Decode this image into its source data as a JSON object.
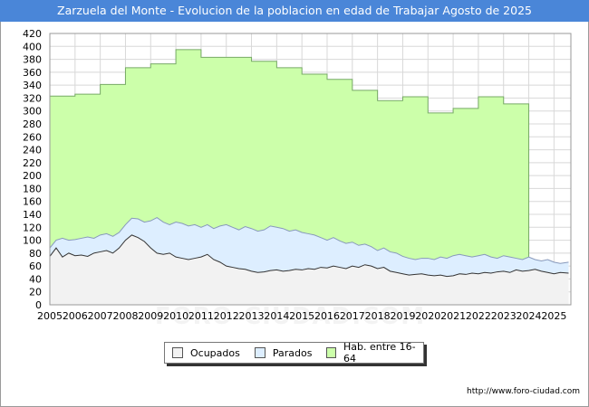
{
  "chart_data": {
    "type": "area",
    "title": "Zarzuela del Monte - Evolucion de la poblacion en edad de Trabajar Agosto de 2025",
    "xlabel": "",
    "ylabel": "",
    "ylim": [
      0,
      420
    ],
    "xlim": [
      2005,
      2025.67
    ],
    "y_ticks": [
      0,
      20,
      40,
      60,
      80,
      100,
      120,
      140,
      160,
      180,
      200,
      220,
      240,
      260,
      280,
      300,
      320,
      340,
      360,
      380,
      400,
      420
    ],
    "x_ticks": [
      "2005",
      "2006",
      "2007",
      "2008",
      "2009",
      "2010",
      "2011",
      "2012",
      "2013",
      "2014",
      "2015",
      "2016",
      "2017",
      "2018",
      "2019",
      "2020",
      "2021",
      "2022",
      "2023",
      "2024",
      "2025"
    ],
    "grid": true,
    "legend_position": "bottom",
    "colors": {
      "hab": "#ccffaa",
      "hab_line": "#77aa66",
      "parados": "#ddeeff",
      "parados_line": "#8899bb",
      "ocupados": "#f2f2f2",
      "ocupados_line": "#333333",
      "title_bar": "#4a86d8"
    },
    "series": [
      {
        "name": "Hab. entre 16-64",
        "x": [
          2005,
          2006,
          2007,
          2008,
          2009,
          2010,
          2011,
          2012,
          2013,
          2014,
          2015,
          2016,
          2017,
          2018,
          2019,
          2020,
          2021,
          2022,
          2023,
          2024
        ],
        "values": [
          323,
          326,
          341,
          367,
          373,
          395,
          383,
          383,
          377,
          367,
          357,
          349,
          332,
          316,
          322,
          297,
          304,
          322,
          311,
          0
        ]
      },
      {
        "name": "Parados",
        "x": [
          2005.0,
          2005.25,
          2005.5,
          2005.75,
          2006.0,
          2006.25,
          2006.5,
          2006.75,
          2007.0,
          2007.25,
          2007.5,
          2007.75,
          2008.0,
          2008.25,
          2008.5,
          2008.75,
          2009.0,
          2009.25,
          2009.5,
          2009.75,
          2010.0,
          2010.25,
          2010.5,
          2010.75,
          2011.0,
          2011.25,
          2011.5,
          2011.75,
          2012.0,
          2012.25,
          2012.5,
          2012.75,
          2013.0,
          2013.25,
          2013.5,
          2013.75,
          2014.0,
          2014.25,
          2014.5,
          2014.75,
          2015.0,
          2015.25,
          2015.5,
          2015.75,
          2016.0,
          2016.25,
          2016.5,
          2016.75,
          2017.0,
          2017.25,
          2017.5,
          2017.75,
          2018.0,
          2018.25,
          2018.5,
          2018.75,
          2019.0,
          2019.25,
          2019.5,
          2019.75,
          2020.0,
          2020.25,
          2020.5,
          2020.75,
          2021.0,
          2021.25,
          2021.5,
          2021.75,
          2022.0,
          2022.25,
          2022.5,
          2022.75,
          2023.0,
          2023.25,
          2023.5,
          2023.75,
          2024.0,
          2024.25,
          2024.5,
          2024.75,
          2025.0,
          2025.25,
          2025.58
        ],
        "values": [
          88,
          100,
          103,
          100,
          101,
          103,
          105,
          103,
          108,
          110,
          106,
          112,
          124,
          134,
          133,
          128,
          130,
          135,
          128,
          124,
          128,
          126,
          122,
          124,
          120,
          124,
          118,
          122,
          124,
          120,
          116,
          121,
          118,
          114,
          116,
          122,
          120,
          118,
          114,
          116,
          112,
          110,
          108,
          104,
          100,
          104,
          99,
          95,
          97,
          92,
          94,
          90,
          84,
          88,
          82,
          80,
          75,
          72,
          70,
          72,
          72,
          70,
          74,
          72,
          76,
          78,
          76,
          74,
          76,
          78,
          74,
          72,
          76,
          74,
          72,
          70,
          74,
          70,
          68,
          70,
          66,
          64,
          66
        ]
      },
      {
        "name": "Ocupados",
        "x": [
          2005.0,
          2005.25,
          2005.5,
          2005.75,
          2006.0,
          2006.25,
          2006.5,
          2006.75,
          2007.0,
          2007.25,
          2007.5,
          2007.75,
          2008.0,
          2008.25,
          2008.5,
          2008.75,
          2009.0,
          2009.25,
          2009.5,
          2009.75,
          2010.0,
          2010.25,
          2010.5,
          2010.75,
          2011.0,
          2011.25,
          2011.5,
          2011.75,
          2012.0,
          2012.25,
          2012.5,
          2012.75,
          2013.0,
          2013.25,
          2013.5,
          2013.75,
          2014.0,
          2014.25,
          2014.5,
          2014.75,
          2015.0,
          2015.25,
          2015.5,
          2015.75,
          2016.0,
          2016.25,
          2016.5,
          2016.75,
          2017.0,
          2017.25,
          2017.5,
          2017.75,
          2018.0,
          2018.25,
          2018.5,
          2018.75,
          2019.0,
          2019.25,
          2019.5,
          2019.75,
          2020.0,
          2020.25,
          2020.5,
          2020.75,
          2021.0,
          2021.25,
          2021.5,
          2021.75,
          2022.0,
          2022.25,
          2022.5,
          2022.75,
          2023.0,
          2023.25,
          2023.5,
          2023.75,
          2024.0,
          2024.25,
          2024.5,
          2024.75,
          2025.0,
          2025.25,
          2025.58
        ],
        "values": [
          75,
          88,
          74,
          80,
          76,
          77,
          75,
          80,
          82,
          84,
          80,
          88,
          100,
          108,
          104,
          98,
          88,
          80,
          78,
          80,
          74,
          72,
          70,
          72,
          74,
          78,
          70,
          66,
          60,
          58,
          56,
          55,
          52,
          50,
          51,
          53,
          54,
          52,
          53,
          55,
          54,
          56,
          55,
          58,
          57,
          60,
          58,
          56,
          60,
          58,
          62,
          60,
          56,
          58,
          52,
          50,
          48,
          46,
          47,
          48,
          46,
          45,
          46,
          44,
          45,
          48,
          47,
          49,
          48,
          50,
          49,
          51,
          52,
          50,
          54,
          52,
          53,
          55,
          52,
          50,
          48,
          50,
          49
        ]
      }
    ]
  },
  "legend": {
    "ocupados": "Ocupados",
    "parados": "Parados",
    "hab": "Hab. entre 16-64"
  },
  "source": "http://www.foro-ciudad.com",
  "watermark": "FORO-CIUDAD.COM"
}
